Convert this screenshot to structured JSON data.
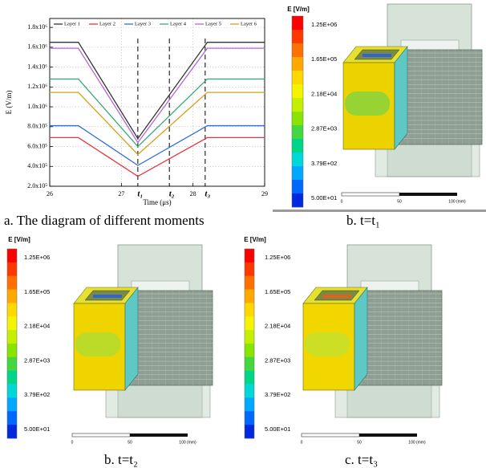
{
  "chart_data": {
    "type": "line",
    "caption": "a. The diagram of different moments",
    "xlabel": "Time (μs)",
    "ylabel": "E (V/m)",
    "x": [
      26,
      26.4,
      27.23,
      28.2,
      29
    ],
    "xlim": [
      26,
      29
    ],
    "xticks": [
      26,
      27,
      28,
      29
    ],
    "ylim": [
      200000,
      1890000
    ],
    "yticks": [
      {
        "value": 200000,
        "label": "2.0x10⁵"
      },
      {
        "value": 400000,
        "label": "4.0x10⁵"
      },
      {
        "value": 600000,
        "label": "6.0x10⁵"
      },
      {
        "value": 800000,
        "label": "8.0x10⁵"
      },
      {
        "value": 1000000,
        "label": "1.0x10⁶"
      },
      {
        "value": 1200000,
        "label": "1.2x10⁶"
      },
      {
        "value": 1400000,
        "label": "1.4x10⁶"
      },
      {
        "value": 1600000,
        "label": "1.6x10⁶"
      },
      {
        "value": 1800000,
        "label": "1.8x10⁶"
      }
    ],
    "grid": true,
    "markers": [
      {
        "x": 27.23,
        "label": "t₁"
      },
      {
        "x": 27.67,
        "label": "t₂"
      },
      {
        "x": 28.17,
        "label": "t₃"
      }
    ],
    "series": [
      {
        "name": "Layer 1",
        "color": "#333333",
        "values": [
          1650000,
          1650000,
          680000,
          1650000,
          1650000
        ]
      },
      {
        "name": "Layer 2",
        "color": "#e8343c",
        "values": [
          690000,
          690000,
          300000,
          690000,
          690000
        ]
      },
      {
        "name": "Layer 3",
        "color": "#2f6fdc",
        "values": [
          810000,
          810000,
          410000,
          810000,
          810000
        ]
      },
      {
        "name": "Layer 4",
        "color": "#3aaa7a",
        "values": [
          1280000,
          1280000,
          600000,
          1280000,
          1280000
        ]
      },
      {
        "name": "Layer 5",
        "color": "#b565d6",
        "values": [
          1590000,
          1590000,
          640000,
          1590000,
          1590000
        ]
      },
      {
        "name": "Layer 6",
        "color": "#d4a017",
        "values": [
          1145000,
          1145000,
          520000,
          1145000,
          1145000
        ]
      }
    ]
  },
  "panels": [
    {
      "caption": "b. t=t₁",
      "colorbar_title": "E [V/m]",
      "colorbar_labels": [
        "1.25E+06",
        "1.65E+05",
        "2.18E+04",
        "2.87E+03",
        "3.79E+02",
        "5.00E+01"
      ],
      "scale_labels": [
        "0",
        "50",
        "100 (mm)"
      ]
    },
    {
      "caption": "b. t=t₂",
      "colorbar_title": "E [V/m]",
      "colorbar_labels": [
        "1.25E+06",
        "1.65E+05",
        "2.18E+04",
        "2.87E+03",
        "3.79E+02",
        "5.00E+01"
      ],
      "scale_labels": [
        "0",
        "50",
        "100 (mm)"
      ]
    },
    {
      "caption": "c. t=t₃",
      "colorbar_title": "E [V/m]",
      "colorbar_labels": [
        "1.25E+06",
        "1.65E+05",
        "2.18E+04",
        "2.87E+03",
        "3.79E+02",
        "5.00E+01"
      ],
      "scale_labels": [
        "0",
        "50",
        "100 (mm)"
      ]
    }
  ]
}
